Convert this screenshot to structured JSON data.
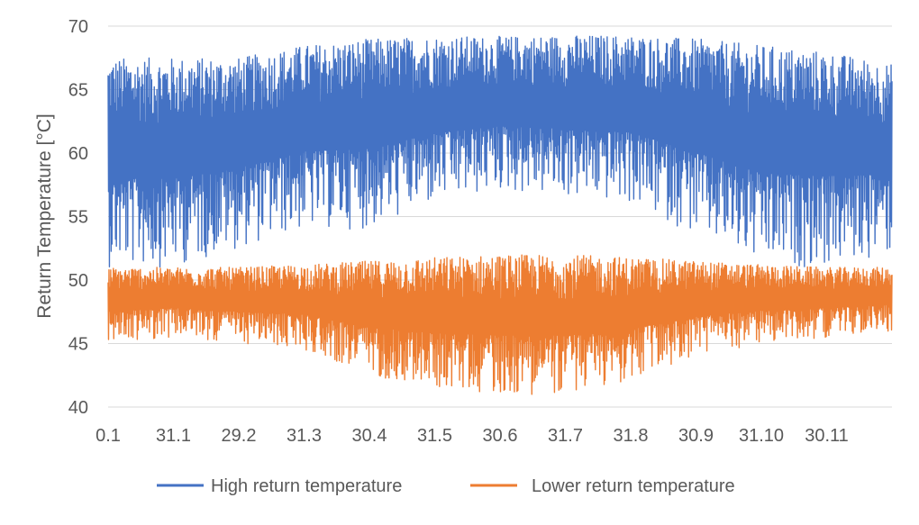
{
  "chart_data": {
    "type": "line",
    "title": "",
    "xlabel": "",
    "ylabel": "Return Temperature [°C]",
    "ylim": [
      40,
      70
    ],
    "y_ticks": [
      40,
      45,
      50,
      55,
      60,
      65,
      70
    ],
    "x_tick_labels": [
      "0.1",
      "31.1",
      "29.2",
      "31.3",
      "30.4",
      "31.5",
      "30.6",
      "31.7",
      "31.8",
      "30.9",
      "31.10",
      "30.11"
    ],
    "grid": true,
    "legend_position": "bottom",
    "series": [
      {
        "name": "High return temperature",
        "color": "#4472C4",
        "envelope": {
          "x_month_index": [
            0,
            1,
            2,
            3,
            4,
            5,
            6,
            7,
            8,
            9,
            10,
            11,
            12
          ],
          "max": [
            67.5,
            67.5,
            67.5,
            68.5,
            69,
            69.2,
            69.2,
            69.3,
            69.3,
            69,
            68.5,
            68,
            67
          ],
          "min": [
            51,
            51,
            52.5,
            54,
            54,
            56,
            57,
            56.5,
            56,
            53.5,
            51,
            51,
            52
          ]
        }
      },
      {
        "name": "Lower return temperature",
        "color": "#ED7D31",
        "envelope": {
          "x_month_index": [
            0,
            1,
            2,
            3,
            4,
            5,
            6,
            7,
            8,
            9,
            10,
            11,
            12
          ],
          "max": [
            51,
            51,
            51,
            51.2,
            51.5,
            51.8,
            52,
            52,
            51.8,
            51.5,
            51.2,
            51,
            51
          ],
          "min": [
            45,
            45.5,
            45,
            44.5,
            42.5,
            41.5,
            41,
            41,
            42,
            44,
            45,
            45.5,
            46
          ]
        }
      }
    ]
  }
}
